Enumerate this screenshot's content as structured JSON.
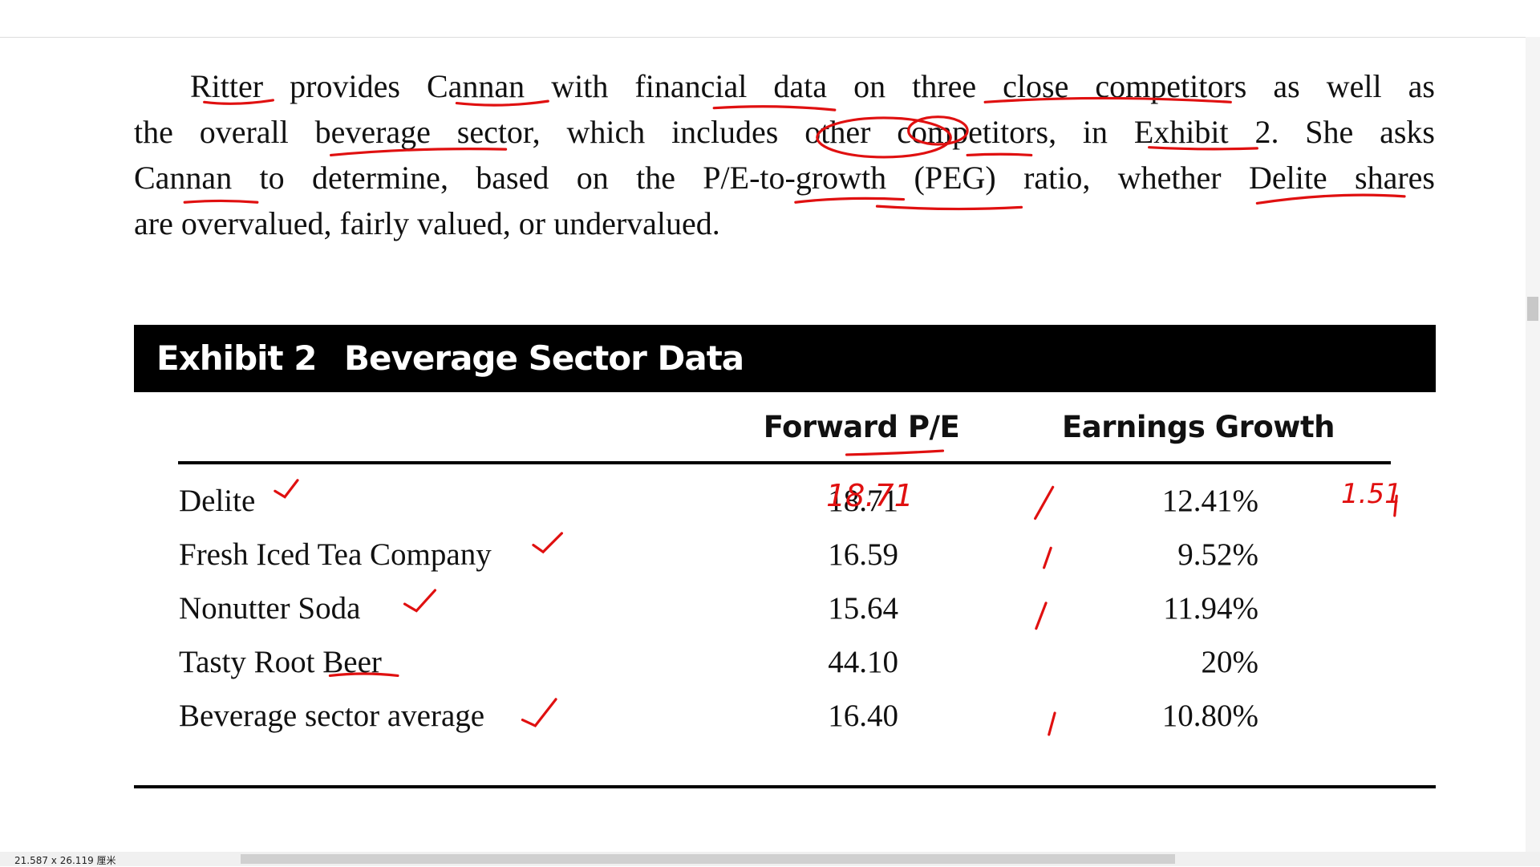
{
  "paragraph_lines": [
    "Ritter provides Cannan with financial data on three close competitors as well as",
    "the overall beverage sector, which includes other competitors, in Exhibit 2. She asks",
    "Cannan to determine, based on the P/E-to-growth (PEG) ratio, whether Delite shares",
    "are overvalued, fairly valued, or undervalued."
  ],
  "exhibit": {
    "label": "Exhibit 2",
    "title": "Beverage Sector Data"
  },
  "table": {
    "headers": [
      "Forward P/E",
      "Earnings Growth"
    ],
    "rows": [
      [
        "Delite",
        "18.71",
        "12.41%"
      ],
      [
        "Fresh Iced Tea Company",
        "16.59",
        "9.52%"
      ],
      [
        "Nonutter Soda",
        "15.64",
        "11.94%"
      ],
      [
        "Tasty Root Beer",
        "44.10",
        "20%"
      ],
      [
        "Beverage sector average",
        "16.40",
        "10.80%"
      ]
    ]
  },
  "annotations": [
    "18.71",
    "1.51"
  ],
  "status_bar": "21.587 x 26.119 厘米"
}
